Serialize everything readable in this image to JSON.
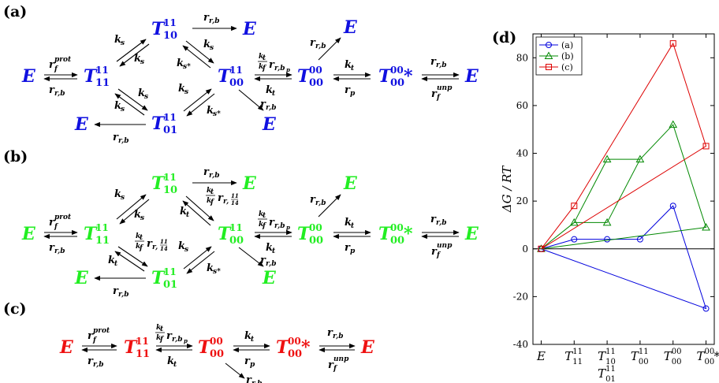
{
  "panels": {
    "a": "(a)",
    "b": "(b)",
    "c": "(c)",
    "d": "(d)"
  },
  "colors": {
    "a": "#1010e0",
    "b": "#22ee22",
    "c": "#ee1111",
    "chart_a": "#0000dd",
    "chart_b": "#008800",
    "chart_c": "#dd0000"
  },
  "species": {
    "E": "E",
    "T": "T",
    "star": "*",
    "sup_11": "11",
    "sup_00": "00",
    "sub_11": "11",
    "sub_10": "10",
    "sub_01": "01",
    "sub_00": "00"
  },
  "rates": {
    "r": "r",
    "r_f": "f",
    "prot": "prot",
    "unp": "unp",
    "rb": "r,b",
    "rbp": "r,b",
    "p_sub": "p",
    "k": "k",
    "s": "s",
    "t": "t",
    "f": "f",
    "s_star": "s*",
    "p": "p",
    "r_frac_sub": "r,",
    "frac_num": "11",
    "frac_den": "14"
  },
  "chart_data": {
    "type": "line",
    "ylabel": "ΔG / RT",
    "ylim": [
      -40,
      90
    ],
    "yticks": [
      -40,
      -20,
      0,
      20,
      40,
      60,
      80
    ],
    "x_positions": [
      0,
      1,
      2,
      3,
      4,
      5
    ],
    "xtick_labels": [
      {
        "base": "E",
        "sup": "",
        "sub": ""
      },
      {
        "base": "T",
        "sup": "11",
        "sub": "11"
      },
      {
        "base": "T",
        "sup": "11",
        "sub": "10"
      },
      {
        "base": "T",
        "sup": "11",
        "sub": "00"
      },
      {
        "base": "T",
        "sup": "00",
        "sub": "00"
      },
      {
        "base": "T",
        "sup": "00",
        "sub": "00",
        "suffix": "*"
      }
    ],
    "xtick_extra": {
      "base": "T",
      "sup": "11",
      "sub": "01",
      "at": 2
    },
    "legend": [
      "(a)",
      "(b)",
      "(c)"
    ],
    "legend_position": "top-left",
    "series": [
      {
        "name": "(a)",
        "marker": "circle",
        "points": [
          [
            0,
            0
          ],
          [
            1,
            4
          ],
          [
            2,
            4
          ],
          [
            3,
            4
          ],
          [
            4,
            18
          ],
          [
            5,
            -25
          ]
        ],
        "paths": [
          [
            [
              0,
              0
            ],
            [
              1,
              4
            ],
            [
              2,
              4
            ],
            [
              3,
              4
            ],
            [
              4,
              18
            ],
            [
              5,
              -25
            ],
            [
              0,
              0
            ]
          ]
        ]
      },
      {
        "name": "(b)",
        "marker": "triangle",
        "points": [
          [
            0,
            0
          ],
          [
            1,
            11
          ],
          [
            2,
            11
          ],
          [
            2,
            37.5
          ],
          [
            3,
            37.5
          ],
          [
            4,
            52
          ],
          [
            5,
            9
          ]
        ],
        "paths": [
          [
            [
              0,
              0
            ],
            [
              1,
              11
            ],
            [
              2,
              11
            ],
            [
              3,
              37.5
            ],
            [
              4,
              52
            ],
            [
              5,
              9
            ],
            [
              0,
              0
            ]
          ],
          [
            [
              1,
              11
            ],
            [
              2,
              37.5
            ],
            [
              3,
              37.5
            ]
          ]
        ]
      },
      {
        "name": "(c)",
        "marker": "square",
        "points": [
          [
            0,
            0
          ],
          [
            1,
            18
          ],
          [
            4,
            86
          ],
          [
            5,
            43
          ]
        ],
        "paths": [
          [
            [
              0,
              0
            ],
            [
              1,
              18
            ],
            [
              4,
              86
            ],
            [
              5,
              43
            ],
            [
              0,
              0
            ]
          ]
        ]
      }
    ]
  }
}
